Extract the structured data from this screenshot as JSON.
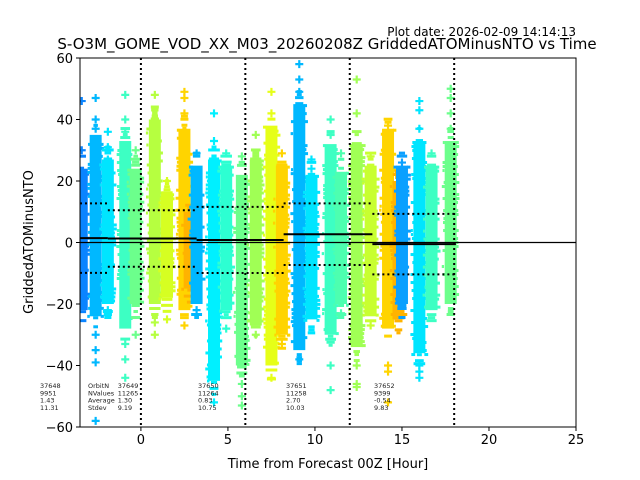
{
  "chart_data": {
    "type": "scatter",
    "plot_date": "Plot date: 2026-02-09 14:14:13",
    "title": "S-O3M_GOME_VOD_XX_M03_20260208Z GriddedATOMinusNTO vs Time",
    "xlabel": "Time from Forecast 00Z [Hour]",
    "ylabel": "GriddedATOMinusNTO",
    "xlim": [
      -3.5,
      25
    ],
    "ylim": [
      -60,
      60
    ],
    "xticks": [
      "0",
      "5",
      "10",
      "15",
      "20",
      "25"
    ],
    "xtick_values": [
      0,
      5,
      10,
      15,
      20,
      25
    ],
    "yticks": [
      "−60",
      "−40",
      "−20",
      "0",
      "20",
      "40",
      "60"
    ],
    "ytick_values": [
      -60,
      -40,
      -20,
      0,
      20,
      40,
      60
    ],
    "marker": "+",
    "zero_line": 0,
    "vertical_dotted_lines": [
      0,
      6,
      12,
      18
    ],
    "columns": [
      {
        "x": -3.4,
        "color": "#0a84ff",
        "top": 24,
        "bottom": -22,
        "outliers": [
          46,
          30,
          -18
        ]
      },
      {
        "x": -2.6,
        "color": "#00b8ff",
        "top": 35,
        "bottom": -24,
        "outliers": [
          47,
          40,
          37,
          20,
          -30,
          -35,
          -39,
          -58
        ]
      },
      {
        "x": -1.9,
        "color": "#00e5ff",
        "top": 27,
        "bottom": -20,
        "outliers": [
          36,
          31,
          27,
          25,
          -22
        ]
      },
      {
        "x": -0.9,
        "color": "#3dffc3",
        "top": 33,
        "bottom": -28,
        "outliers": [
          48,
          40,
          36,
          -33,
          -38,
          -44
        ]
      },
      {
        "x": -0.3,
        "color": "#6cff8c",
        "top": 24,
        "bottom": -20,
        "outliers": [
          30,
          -30
        ]
      },
      {
        "x": 0.8,
        "color": "#b6ff40",
        "top": 40,
        "bottom": -20,
        "outliers": [
          48,
          -26,
          -30
        ]
      },
      {
        "x": 1.5,
        "color": "#d6ff22",
        "top": 16,
        "bottom": -18,
        "outliers": [
          20,
          -25
        ]
      },
      {
        "x": 2.5,
        "color": "#ffd400",
        "top": 37,
        "bottom": -22,
        "outliers": [
          49,
          47,
          42,
          31,
          -27
        ]
      },
      {
        "x": 2.8,
        "color": "#ffb300",
        "top": 10,
        "bottom": -15,
        "outliers": []
      },
      {
        "x": 3.2,
        "color": "#00b8ff",
        "top": 25,
        "bottom": -20,
        "outliers": [
          29,
          -22
        ]
      },
      {
        "x": 4.2,
        "color": "#00f0ff",
        "top": 27,
        "bottom": -45,
        "outliers": [
          42,
          33,
          -52
        ]
      },
      {
        "x": 4.9,
        "color": "#2dffd2",
        "top": 25,
        "bottom": -22,
        "outliers": [
          29,
          -28
        ]
      },
      {
        "x": 5.8,
        "color": "#6cff8c",
        "top": 22,
        "bottom": -40,
        "outliers": [
          28,
          -46,
          -50,
          -53
        ]
      },
      {
        "x": 6.6,
        "color": "#a0ff55",
        "top": 27,
        "bottom": -27,
        "outliers": [
          35,
          -30
        ]
      },
      {
        "x": 7.5,
        "color": "#e6ff18",
        "top": 38,
        "bottom": -40,
        "outliers": [
          49,
          42,
          -44
        ]
      },
      {
        "x": 8.1,
        "color": "#ffd400",
        "top": 25,
        "bottom": -30,
        "outliers": [
          29,
          -33
        ]
      },
      {
        "x": 9.1,
        "color": "#00b8ff",
        "top": 45,
        "bottom": -35,
        "outliers": [
          58,
          53,
          49,
          -38
        ]
      },
      {
        "x": 9.8,
        "color": "#00e5ff",
        "top": 22,
        "bottom": -25,
        "outliers": [
          27,
          24
        ]
      },
      {
        "x": 10.9,
        "color": "#3dffc3",
        "top": 32,
        "bottom": -30,
        "outliers": [
          40,
          35,
          -40,
          -48
        ]
      },
      {
        "x": 11.5,
        "color": "#4dffb0",
        "top": 23,
        "bottom": -20,
        "outliers": [
          29,
          -23
        ]
      },
      {
        "x": 12.4,
        "color": "#a0ff55",
        "top": 32,
        "bottom": -34,
        "outliers": [
          53,
          42,
          -40,
          -46,
          -47
        ]
      },
      {
        "x": 13.2,
        "color": "#c8ff30",
        "top": 25,
        "bottom": -24,
        "outliers": [
          28,
          -27
        ]
      },
      {
        "x": 14.2,
        "color": "#ffd400",
        "top": 37,
        "bottom": -28,
        "outliers": [
          38,
          34,
          -40,
          -42,
          -52
        ]
      },
      {
        "x": 14.8,
        "color": "#ffb300",
        "top": 20,
        "bottom": -25,
        "outliers": []
      },
      {
        "x": 15.0,
        "color": "#0aa0ff",
        "top": 25,
        "bottom": -20,
        "outliers": [
          26
        ]
      },
      {
        "x": 16.0,
        "color": "#00e5ff",
        "top": 33,
        "bottom": -36,
        "outliers": [
          46,
          43,
          37,
          -40,
          -42,
          -44
        ]
      },
      {
        "x": 16.7,
        "color": "#3dffc3",
        "top": 25,
        "bottom": -22,
        "outliers": [
          29
        ]
      },
      {
        "x": 17.8,
        "color": "#6cff8c",
        "top": 33,
        "bottom": -20,
        "outliers": [
          50,
          47,
          42,
          37
        ]
      }
    ],
    "orbit_stats": [
      {
        "orbit": "37648",
        "nvalues": "9951",
        "average": "1.43",
        "stdev": "11.31",
        "mean": 1.43,
        "std": 11.31,
        "x_start": -3.5,
        "x_end": -1.9,
        "label_x": -3.0
      },
      {
        "orbit": "37649",
        "nvalues": "11265",
        "average": "1.30",
        "stdev": "9.19",
        "mean": 1.3,
        "std": 9.19,
        "x_start": -1.9,
        "x_end": 3.2,
        "label_x": -3.0
      },
      {
        "orbit": "37650",
        "nvalues": "11264",
        "average": "0.83",
        "stdev": "10.75",
        "mean": 0.83,
        "std": 10.75,
        "x_start": 3.2,
        "x_end": 8.2,
        "label_x": 3.3
      },
      {
        "orbit": "37651",
        "nvalues": "11258",
        "average": "2.70",
        "stdev": "10.03",
        "mean": 2.7,
        "std": 10.03,
        "x_start": 8.2,
        "x_end": 13.3,
        "label_x": 8.4
      },
      {
        "orbit": "37652",
        "nvalues": "9399",
        "average": "-0.54",
        "stdev": "9.83",
        "mean": -0.54,
        "std": 9.83,
        "x_start": 13.3,
        "x_end": 18.1,
        "label_x": 13.4
      }
    ],
    "stat_labels": {
      "orbit": "OrbitN",
      "nvalues": "NValues",
      "average": "Average",
      "stdev": "Stdev"
    }
  }
}
